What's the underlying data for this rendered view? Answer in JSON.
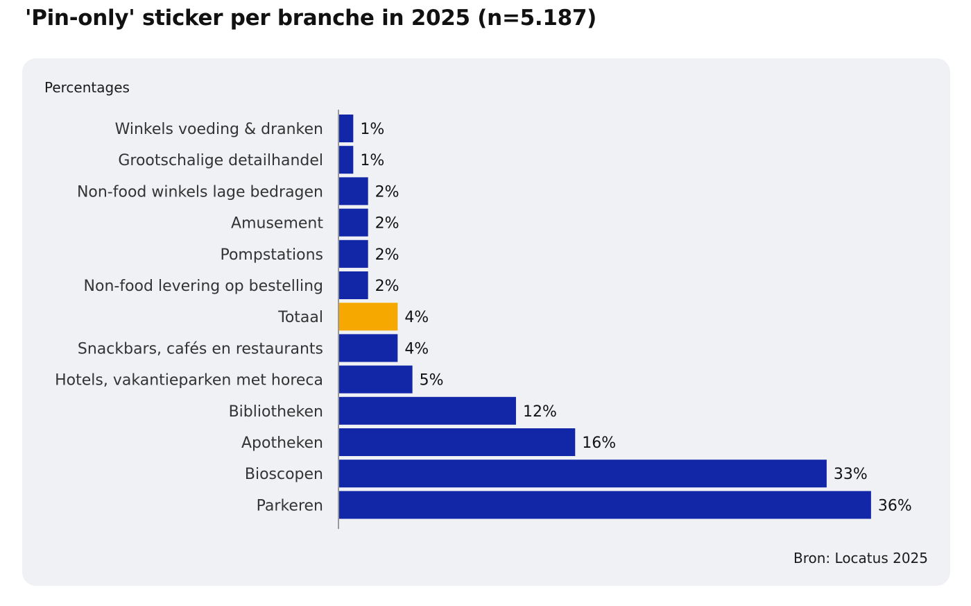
{
  "title": "'Pin-only' sticker per branche in 2025 (n=5.187)",
  "unit_label": "Percentages",
  "source": "Bron: Locatus 2025",
  "colors": {
    "bar": "#1226a8",
    "highlight": "#f7a800",
    "panel": "#f0f1f5",
    "axis": "#9a9a9a"
  },
  "chart_data": {
    "type": "bar",
    "orientation": "horizontal",
    "title": "'Pin-only' sticker per branche in 2025 (n=5.187)",
    "ylabel": "Percentages",
    "xlim": [
      0,
      36
    ],
    "grid": false,
    "legend": "none",
    "highlight_category": "Totaal",
    "categories": [
      "Winkels voeding & dranken",
      "Grootschalige detailhandel",
      "Non-food winkels lage bedragen",
      "Amusement",
      "Pompstations",
      "Non-food levering op bestelling",
      "Totaal",
      "Snackbars, cafés en restaurants",
      "Hotels, vakantieparken met horeca",
      "Bibliotheken",
      "Apotheken",
      "Bioscopen",
      "Parkeren"
    ],
    "values": [
      1,
      1,
      2,
      2,
      2,
      2,
      4,
      4,
      5,
      12,
      16,
      33,
      36
    ],
    "value_labels": [
      "1%",
      "1%",
      "2%",
      "2%",
      "2%",
      "2%",
      "4%",
      "4%",
      "5%",
      "12%",
      "16%",
      "33%",
      "36%"
    ]
  }
}
